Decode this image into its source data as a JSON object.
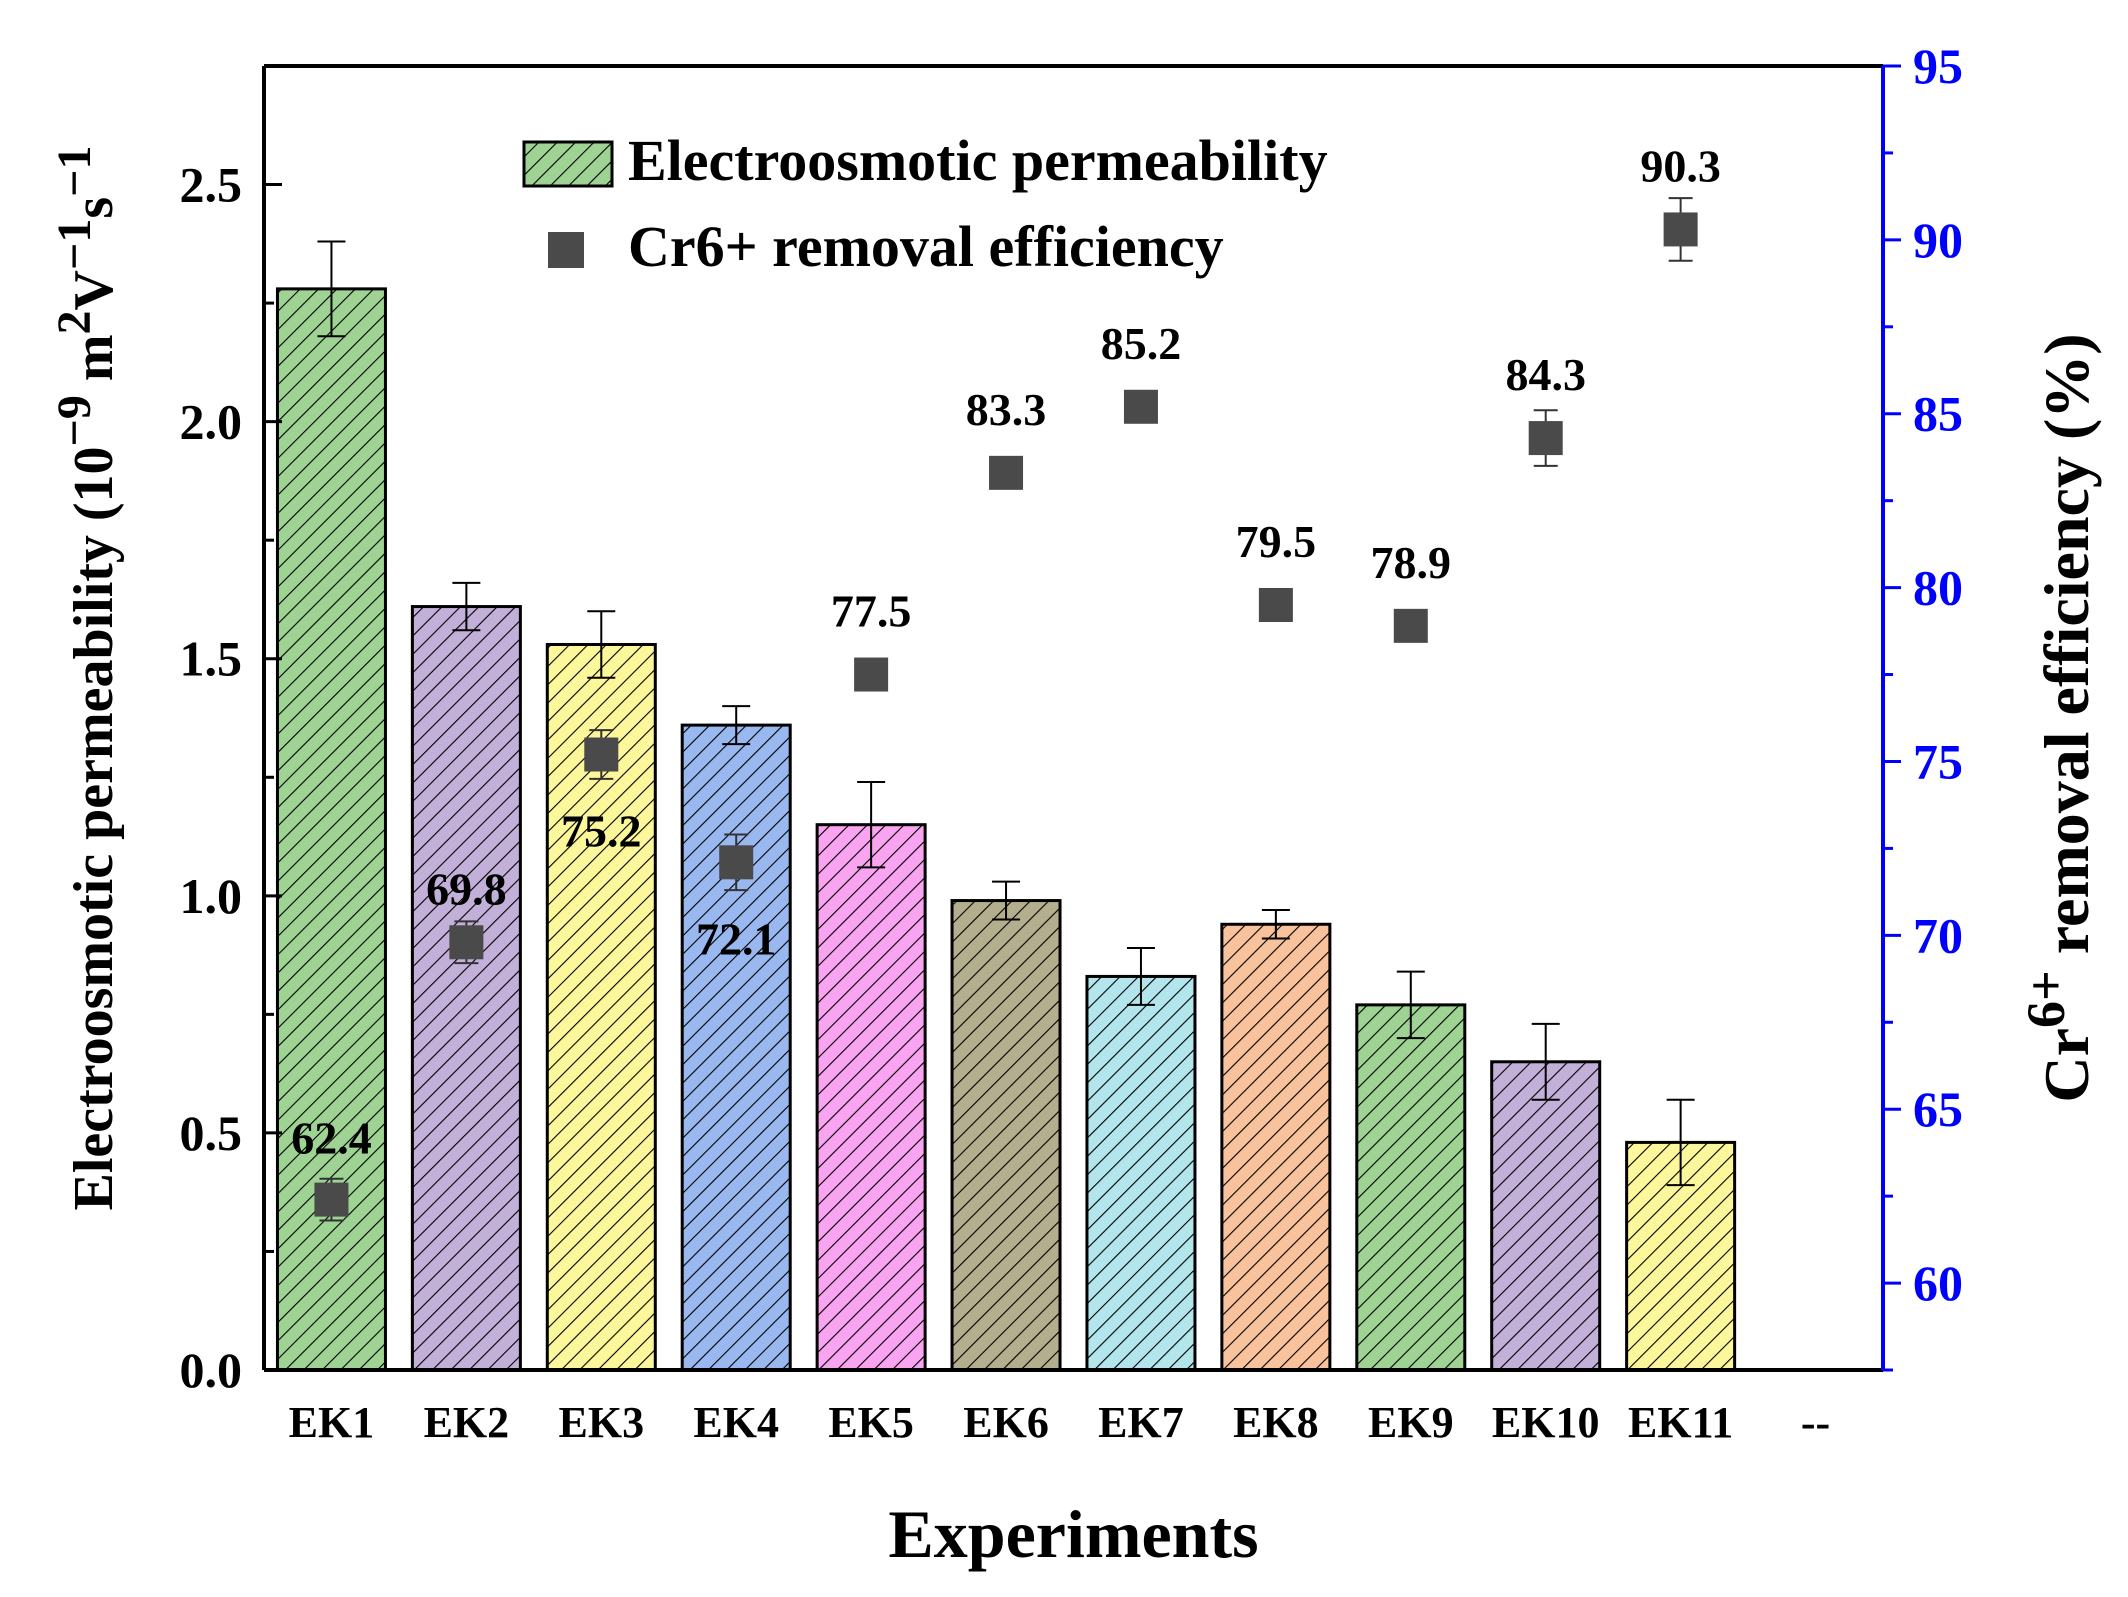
{
  "chart_data": {
    "type": "bar",
    "xlabel": "Experiments",
    "ylabel": "Electroosmotic permeability (10⁻⁹ m²V⁻¹s⁻¹)",
    "ylabel_parts": [
      "Electroosmotic permeability (10",
      "−9",
      " m",
      "2",
      "V",
      "−1",
      "s",
      "−1"
    ],
    "y2label": "Cr6+ removal efficiency (%)",
    "y2label_parts": [
      "Cr",
      "6+",
      " removal efficiency (%)"
    ],
    "categories": [
      "EK1",
      "EK2",
      "EK3",
      "EK4",
      "EK5",
      "EK6",
      "EK7",
      "EK8",
      "EK9",
      "EK10",
      "EK11"
    ],
    "extra_tick_label": "--",
    "ylim": [
      0,
      2.75
    ],
    "yticks": [
      "0.0",
      "0.5",
      "1.0",
      "1.5",
      "2.0",
      "2.5"
    ],
    "y2lim": [
      57.5,
      95
    ],
    "y2ticks": [
      "60",
      "65",
      "70",
      "75",
      "80",
      "85",
      "90",
      "95"
    ],
    "series": [
      {
        "name": "Electroosmotic permeability",
        "kind": "bar",
        "values": [
          2.28,
          1.61,
          1.53,
          1.36,
          1.15,
          0.99,
          0.83,
          0.94,
          0.77,
          0.65,
          0.48
        ],
        "errors": [
          0.1,
          0.05,
          0.07,
          0.04,
          0.09,
          0.04,
          0.06,
          0.03,
          0.07,
          0.08,
          0.09
        ],
        "colors": [
          "#9fd394",
          "#c3b0d9",
          "#fdf79b",
          "#9ab8f0",
          "#f9a4f0",
          "#b3ae8e",
          "#b3e5ec",
          "#f8c29c",
          "#9fd394",
          "#c3b0d9",
          "#fdf79b"
        ]
      },
      {
        "name": "Cr6+ removal efficiency",
        "kind": "scatter",
        "axis": "right",
        "values": [
          62.4,
          69.8,
          75.2,
          72.1,
          77.5,
          83.3,
          85.2,
          79.5,
          78.9,
          84.3,
          90.3
        ],
        "errors": [
          0.6,
          0.6,
          0.7,
          0.8,
          0.3,
          0.2,
          0.2,
          0.4,
          0.3,
          0.8,
          0.9
        ],
        "labels": [
          "62.4",
          "69.8",
          "75.2",
          "72.1",
          "77.5",
          "83.3",
          "85.2",
          "79.5",
          "78.9",
          "84.3",
          "90.3"
        ],
        "color": "#4a4a4a"
      }
    ],
    "legend": {
      "position": "top-center",
      "entries": [
        "Electroosmotic permeability",
        "Cr6+ removal efficiency"
      ]
    },
    "right_axis_color": "#0000ff"
  }
}
